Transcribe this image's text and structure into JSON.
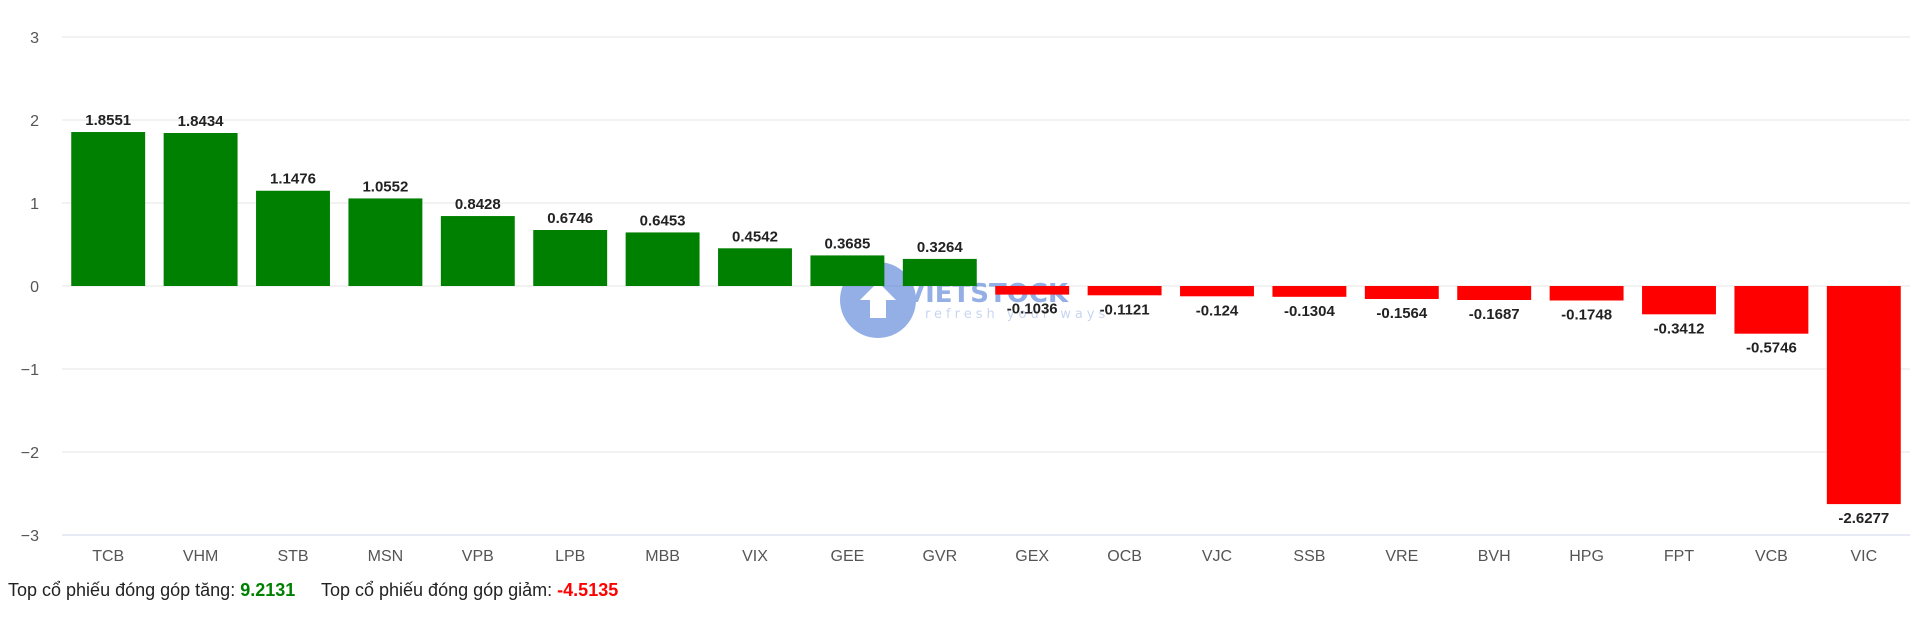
{
  "chart_data": {
    "type": "bar",
    "categories": [
      "TCB",
      "VHM",
      "STB",
      "MSN",
      "VPB",
      "LPB",
      "MBB",
      "VIX",
      "GEE",
      "GVR",
      "GEX",
      "OCB",
      "VJC",
      "SSB",
      "VRE",
      "BVH",
      "HPG",
      "FPT",
      "VCB",
      "VIC"
    ],
    "values": [
      1.8551,
      1.8434,
      1.1476,
      1.0552,
      0.8428,
      0.6746,
      0.6453,
      0.4542,
      0.3685,
      0.3264,
      -0.1036,
      -0.1121,
      -0.124,
      -0.1304,
      -0.1564,
      -0.1687,
      -0.1748,
      -0.3412,
      -0.5746,
      -2.6277
    ],
    "value_labels": [
      "1.8551",
      "1.8434",
      "1.1476",
      "1.0552",
      "0.8428",
      "0.6746",
      "0.6453",
      "0.4542",
      "0.3685",
      "0.3264",
      "-0.1036",
      "-0.1121",
      "-0.124",
      "-0.1304",
      "-0.1564",
      "-0.1687",
      "-0.1748",
      "-0.3412",
      "-0.5746",
      "-2.6277"
    ],
    "ylim": [
      -3,
      3
    ],
    "yticks": [
      3,
      2,
      1,
      0,
      -1,
      -2,
      -3
    ],
    "ytick_labels": [
      "3",
      "2",
      "1",
      "0",
      "−1",
      "−2",
      "−3"
    ],
    "grid": true,
    "positive_color": "#008000",
    "negative_color": "#ff0000"
  },
  "watermark": {
    "text": "VIETSTOCK",
    "subtext": "refresh your ways"
  },
  "summary": {
    "up_label": "Top cổ phiếu đóng góp tăng:",
    "up_value": "9.2131",
    "down_label": "Top cổ phiếu đóng góp giảm:",
    "down_value": "-4.5135"
  }
}
